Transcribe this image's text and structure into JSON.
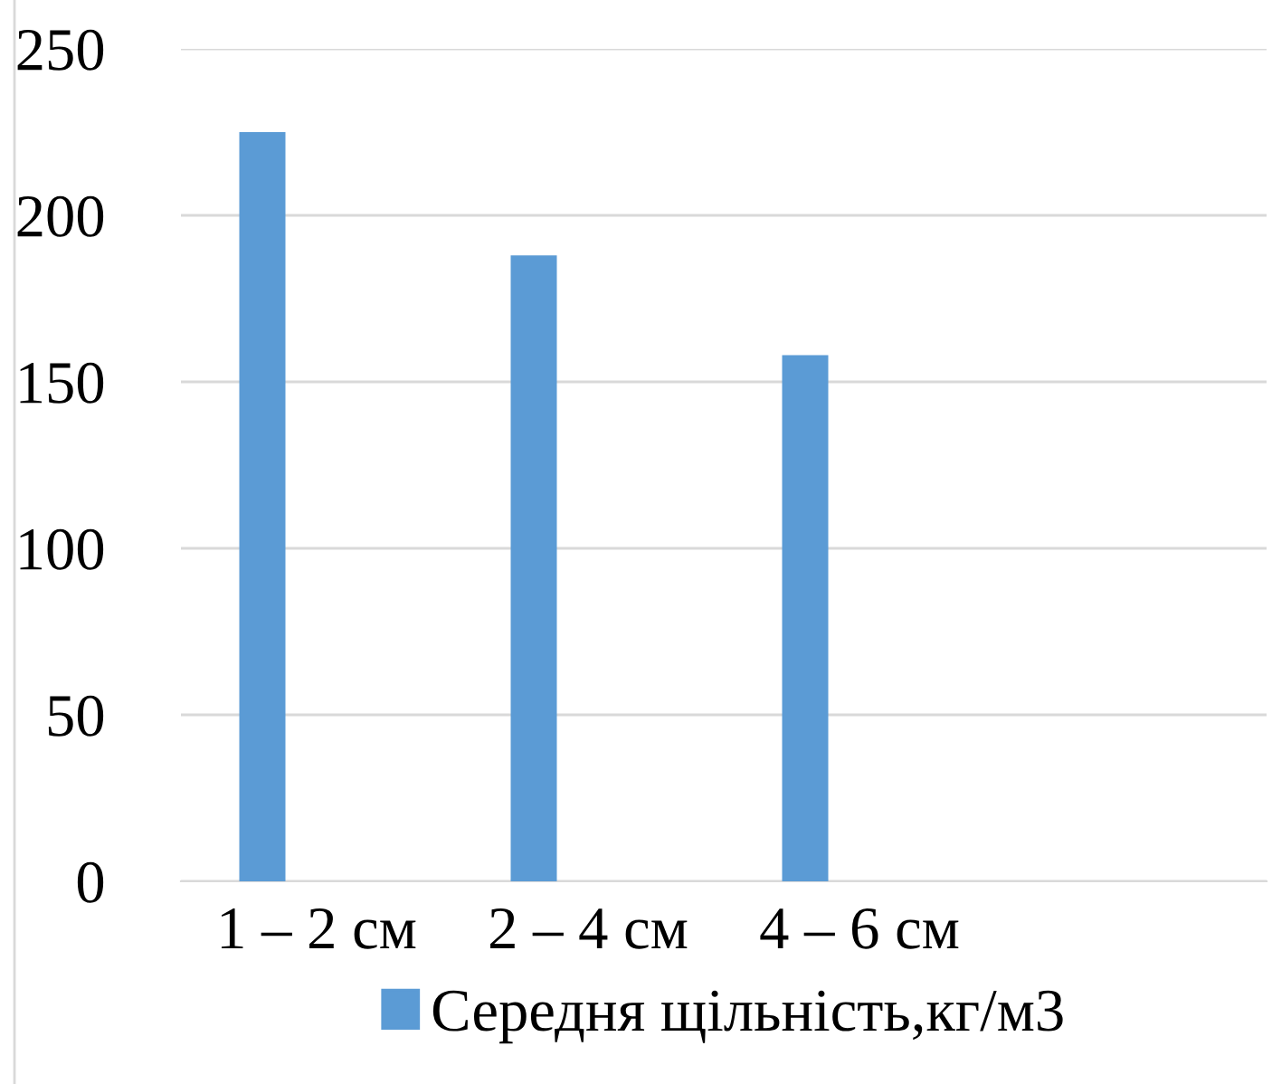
{
  "chart_data": {
    "type": "bar",
    "categories": [
      "1 – 2 см",
      "2 – 4 см",
      "4 – 6 см",
      null
    ],
    "series": [
      {
        "name": "Середня щільність,кг/м3",
        "color": "#5b9bd5",
        "values": [
          225,
          188,
          158,
          null
        ]
      }
    ],
    "ylim": [
      0,
      250
    ],
    "yticks": [
      0,
      50,
      100,
      150,
      200,
      250
    ],
    "grid": "y",
    "legend": "bottom"
  }
}
